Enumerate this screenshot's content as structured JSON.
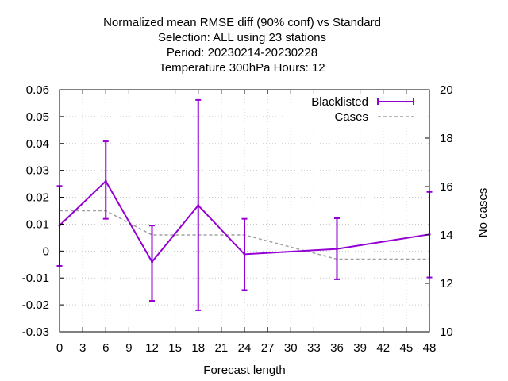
{
  "chart_data": {
    "type": "line",
    "title_lines": [
      "Normalized mean RMSE diff (90% conf) vs Standard",
      "Selection: ALL using    23 stations",
      "Period: 20230214-20230228",
      "Temperature 300hPa   Hours:  12"
    ],
    "xlabel": "Forecast length",
    "ylabel": "",
    "y2label": "No cases",
    "xlim": [
      0,
      48
    ],
    "ylim": [
      -0.03,
      0.06
    ],
    "y2lim": [
      10,
      20
    ],
    "x_ticks": [
      "0",
      "3",
      "6",
      "9",
      "12",
      "15",
      "18",
      "21",
      "24",
      "27",
      "30",
      "33",
      "36",
      "39",
      "42",
      "45",
      "48"
    ],
    "y_ticks": [
      "-0.03",
      "-0.02",
      "-0.01",
      "0",
      "0.01",
      "0.02",
      "0.03",
      "0.04",
      "0.05",
      "0.06"
    ],
    "y2_ticks": [
      "10",
      "12",
      "14",
      "16",
      "18",
      "20"
    ],
    "grid": true,
    "legend_position": "top-right",
    "colors": {
      "blacklisted": "#9400d3",
      "cases": "#a0a0a0"
    },
    "series": [
      {
        "name": "Blacklisted",
        "axis": "y1",
        "style": "line-errorbars",
        "x": [
          0,
          6,
          12,
          18,
          24,
          36,
          48
        ],
        "y": [
          0.0095,
          0.026,
          -0.004,
          0.017,
          -0.0012,
          0.0008,
          0.0062
        ],
        "y_low": [
          -0.0055,
          0.012,
          -0.0185,
          -0.022,
          -0.0145,
          -0.0105,
          -0.0098
        ],
        "y_high": [
          0.0242,
          0.0408,
          0.0095,
          0.0562,
          0.012,
          0.0122,
          0.022
        ]
      },
      {
        "name": "Cases",
        "axis": "y2",
        "style": "dashed",
        "x": [
          0,
          6,
          12,
          18,
          24,
          36,
          48
        ],
        "y": [
          15,
          15,
          14,
          14,
          14,
          13,
          13
        ]
      }
    ]
  }
}
